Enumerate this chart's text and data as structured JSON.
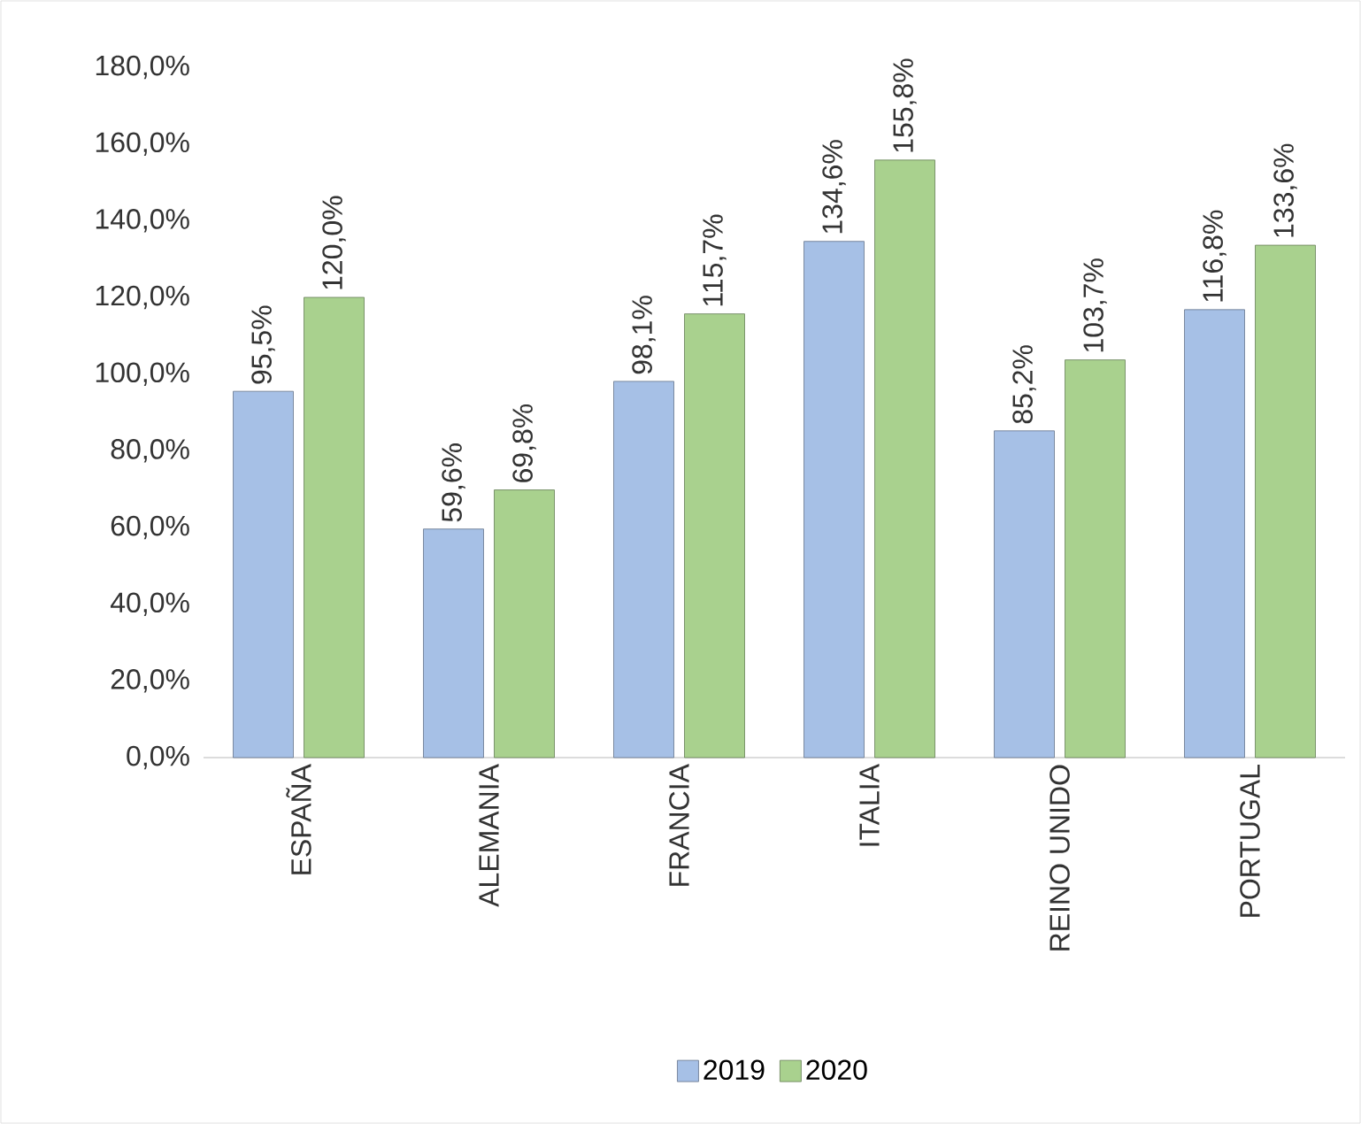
{
  "chart_data": {
    "type": "bar",
    "categories": [
      "ESPAÑA",
      "ALEMANIA",
      "FRANCIA",
      "ITALIA",
      "REINO UNIDO",
      "PORTUGAL"
    ],
    "series": [
      {
        "name": "2019",
        "color": "#a6c0e6",
        "values": [
          95.5,
          59.6,
          98.1,
          134.6,
          85.2,
          116.8
        ],
        "value_labels": [
          "95,5%",
          "59,6%",
          "98,1%",
          "134,6%",
          "85,2%",
          "116,8%"
        ]
      },
      {
        "name": "2020",
        "color": "#a9d18e",
        "values": [
          120.0,
          69.8,
          115.7,
          155.8,
          103.7,
          133.6
        ],
        "value_labels": [
          "120,0%",
          "69,8%",
          "115,7%",
          "155,8%",
          "103,7%",
          "133,6%"
        ]
      }
    ],
    "ylim": [
      0,
      180
    ],
    "yticks": [
      {
        "value": 0,
        "label": "0,0%"
      },
      {
        "value": 20,
        "label": "20,0%"
      },
      {
        "value": 40,
        "label": "40,0%"
      },
      {
        "value": 60,
        "label": "60,0%"
      },
      {
        "value": 80,
        "label": "80,0%"
      },
      {
        "value": 100,
        "label": "100,0%"
      },
      {
        "value": 120,
        "label": "120,0%"
      },
      {
        "value": 140,
        "label": "140,0%"
      },
      {
        "value": 160,
        "label": "160,0%"
      },
      {
        "value": 180,
        "label": "180,0%"
      }
    ],
    "legend": "bottom"
  }
}
